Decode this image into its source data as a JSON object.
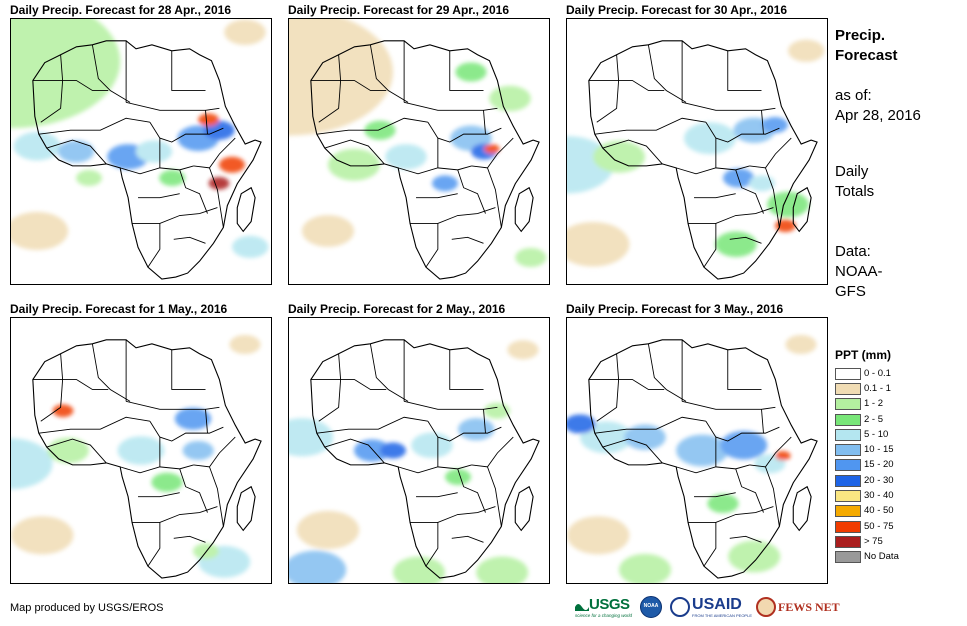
{
  "panels": [
    {
      "title": "Daily Precip. Forecast for 28 Apr., 2016"
    },
    {
      "title": "Daily Precip. Forecast for 29 Apr., 2016"
    },
    {
      "title": "Daily Precip. Forecast for 30 Apr., 2016"
    },
    {
      "title": "Daily Precip. Forecast for 1 May., 2016"
    },
    {
      "title": "Daily Precip. Forecast for 2 May., 2016"
    },
    {
      "title": "Daily Precip. Forecast for 3 May., 2016"
    }
  ],
  "sidebar": {
    "title_line1": "Precip.",
    "title_line2": "Forecast",
    "asof_label": "as of:",
    "asof_date": "Apr 28, 2016",
    "totals_line1": "Daily",
    "totals_line2": "Totals",
    "data_label": "Data:",
    "data_line1": "NOAA-",
    "data_line2": "GFS"
  },
  "legend": {
    "title": "PPT (mm)",
    "items": [
      {
        "label": "0 - 0.1",
        "color": "#ffffff"
      },
      {
        "label": "0.1 - 1",
        "color": "#f0dcb4"
      },
      {
        "label": "1 - 2",
        "color": "#b4f0a0"
      },
      {
        "label": "2 - 5",
        "color": "#78e678"
      },
      {
        "label": "5 - 10",
        "color": "#b4e6f0"
      },
      {
        "label": "10 - 15",
        "color": "#82bef0"
      },
      {
        "label": "15 - 20",
        "color": "#5096f0"
      },
      {
        "label": "20 - 30",
        "color": "#1e64e6"
      },
      {
        "label": "30 - 40",
        "color": "#fae682"
      },
      {
        "label": "40 - 50",
        "color": "#f5aa00"
      },
      {
        "label": "50 - 75",
        "color": "#f03c00"
      },
      {
        "label": "> 75",
        "color": "#aa1e1e"
      },
      {
        "label": "No Data",
        "color": "#999999"
      }
    ]
  },
  "footer": {
    "credit": "Map produced by USGS/EROS",
    "logo_usgs": "USGS",
    "logo_usgs_tag": "science for a changing world",
    "logo_noaa": "NOAA",
    "logo_usaid": "USAID",
    "logo_usaid_tag": "FROM THE AMERICAN PEOPLE",
    "logo_fews": "FEWS NET"
  },
  "colors": {
    "land": "#ffffff",
    "border": "#000000"
  }
}
